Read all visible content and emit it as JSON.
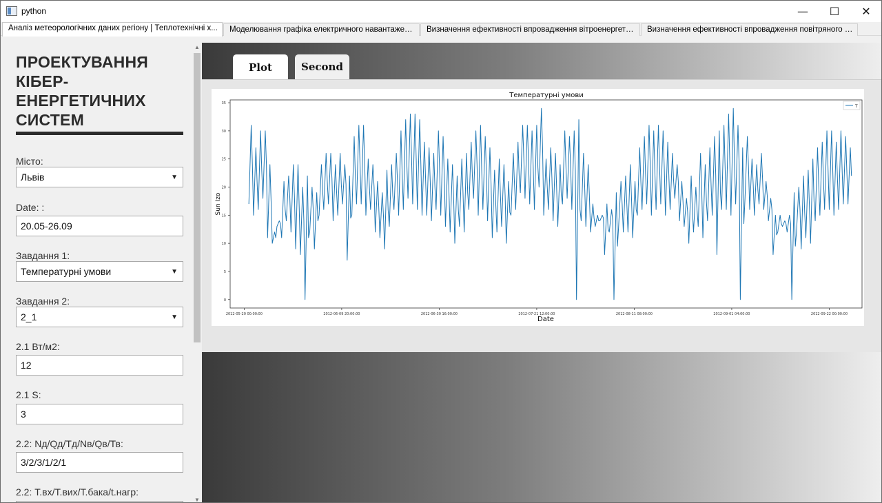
{
  "window": {
    "title": "python",
    "minimize_glyph": "—",
    "maximize_glyph": "☐",
    "close_glyph": "✕"
  },
  "doc_tabs": [
    {
      "label": "Аналіз метеорологічних даних регіону | Теплотехнічні х..."
    },
    {
      "label": "Моделювання графіка електричного навантаження"
    },
    {
      "label": "Визначення ефективності впровадження вітроенергети..."
    },
    {
      "label": "Визначення ефективності впровадження повітряного т..."
    }
  ],
  "sidebar": {
    "heading": "ПРОЕКТУВАННЯ КІБЕР-ЕНЕРГЕТИЧНИХ СИСТЕМ",
    "fields": [
      {
        "label": "Місто:",
        "value": "Львів",
        "kind": "select"
      },
      {
        "label": "Date: :",
        "value": "20.05-26.09",
        "kind": "input"
      },
      {
        "label": "Завдання 1:",
        "value": "Температурні умови",
        "kind": "select"
      },
      {
        "label": "Завдання 2:",
        "value": "2_1",
        "kind": "select"
      },
      {
        "label": "2.1 Вт/м2:",
        "value": "12",
        "kind": "input"
      },
      {
        "label": "2.1 S:",
        "value": "3",
        "kind": "input"
      },
      {
        "label": "2.2: Nд/Qд/Тд/Nв/Qв/Тв:",
        "value": "3/2/3/1/2/1",
        "kind": "input"
      },
      {
        "label": "2.2: Т.вх/Т.вих/Т.бака/t.нагр:",
        "value": "",
        "kind": "input"
      }
    ]
  },
  "plot_tabs": [
    {
      "label": "Plot",
      "active": true
    },
    {
      "label": "Second",
      "active": false
    }
  ],
  "chart_data": {
    "type": "line",
    "title": "Температурні умови",
    "xlabel": "Date",
    "ylabel": "Sun Izo",
    "legend": {
      "entries": [
        "T"
      ],
      "placement": "top-right"
    },
    "x_ticks": [
      "2012-05-20 00:00:00",
      "2012-06-09 20:00:00",
      "2012-06-30 16:00:00",
      "2012-07-21 12:00:00",
      "2012-08-11 08:00:00",
      "2012-09-01 04:00:00",
      "2012-09-22 00:00:00"
    ],
    "y_ticks": [
      "0",
      "5",
      "10",
      "15",
      "20",
      "25",
      "30",
      "35"
    ],
    "xlim": [
      "2012-05-17",
      "2012-09-29"
    ],
    "ylim": [
      -1.5,
      35.5
    ],
    "grid": false,
    "color": "#1f77b4",
    "series": [
      {
        "x": [
          "2012-05-21",
          "2012-05-22",
          "2012-05-23",
          "2012-05-24",
          "2012-05-25",
          "2012-05-26",
          "2012-05-27",
          "2012-05-28",
          "2012-05-29",
          "2012-05-30",
          "2012-05-31",
          "2012-06-01",
          "2012-06-02",
          "2012-06-03",
          "2012-06-04",
          "2012-06-05",
          "2012-06-06",
          "2012-06-07",
          "2012-06-08",
          "2012-06-09",
          "2012-06-10",
          "2012-06-11",
          "2012-06-12",
          "2012-06-13",
          "2012-06-14",
          "2012-06-15",
          "2012-06-16",
          "2012-06-17",
          "2012-06-18",
          "2012-06-19",
          "2012-06-20",
          "2012-06-21",
          "2012-06-22",
          "2012-06-23",
          "2012-06-24",
          "2012-06-25",
          "2012-06-26",
          "2012-06-27",
          "2012-06-28",
          "2012-06-29",
          "2012-06-30",
          "2012-07-01",
          "2012-07-02",
          "2012-07-03",
          "2012-07-04",
          "2012-07-05",
          "2012-07-06",
          "2012-07-07",
          "2012-07-08",
          "2012-07-09",
          "2012-07-10",
          "2012-07-11",
          "2012-07-12",
          "2012-07-13",
          "2012-07-14",
          "2012-07-15",
          "2012-07-16",
          "2012-07-17",
          "2012-07-18",
          "2012-07-19",
          "2012-07-20",
          "2012-07-21",
          "2012-07-22",
          "2012-07-23",
          "2012-07-24",
          "2012-07-25",
          "2012-07-26",
          "2012-07-27",
          "2012-07-28",
          "2012-07-29",
          "2012-07-30",
          "2012-07-31",
          "2012-08-01",
          "2012-08-02",
          "2012-08-03",
          "2012-08-04",
          "2012-08-05",
          "2012-08-06",
          "2012-08-07",
          "2012-08-08",
          "2012-08-09",
          "2012-08-10",
          "2012-08-11",
          "2012-08-12",
          "2012-08-13",
          "2012-08-14",
          "2012-08-15",
          "2012-08-16",
          "2012-08-17",
          "2012-08-18",
          "2012-08-19",
          "2012-08-20",
          "2012-08-21",
          "2012-08-22",
          "2012-08-23",
          "2012-08-24",
          "2012-08-25",
          "2012-08-26",
          "2012-08-27",
          "2012-08-28",
          "2012-08-29",
          "2012-08-30",
          "2012-08-31",
          "2012-09-01",
          "2012-09-02",
          "2012-09-03",
          "2012-09-04",
          "2012-09-05",
          "2012-09-06",
          "2012-09-07",
          "2012-09-08",
          "2012-09-09",
          "2012-09-10",
          "2012-09-11",
          "2012-09-12",
          "2012-09-13",
          "2012-09-14",
          "2012-09-15",
          "2012-09-16",
          "2012-09-17",
          "2012-09-18",
          "2012-09-19",
          "2012-09-20",
          "2012-09-21",
          "2012-09-22",
          "2012-09-23",
          "2012-09-24",
          "2012-09-25",
          "2012-09-26"
        ],
        "min": [
          17,
          15,
          16,
          18,
          11,
          10,
          13,
          11,
          14,
          12,
          9,
          8,
          0,
          12,
          9,
          15,
          16,
          17,
          14,
          15,
          17,
          7,
          15,
          17,
          17,
          15,
          16,
          12,
          11,
          9,
          13,
          16,
          15,
          16,
          18,
          17,
          16,
          15,
          15,
          14,
          16,
          15,
          13,
          12,
          10,
          13,
          12,
          16,
          18,
          15,
          16,
          14,
          11,
          12,
          13,
          10,
          15,
          16,
          19,
          18,
          17,
          16,
          20,
          15,
          16,
          14,
          13,
          17,
          18,
          16,
          0,
          14,
          13,
          12,
          13,
          14,
          8,
          12,
          0,
          13,
          12,
          12,
          11,
          15,
          16,
          17,
          15,
          16,
          17,
          15,
          16,
          18,
          14,
          13,
          10,
          12,
          13,
          11,
          14,
          15,
          8,
          16,
          16,
          15,
          17,
          0,
          18,
          16,
          15,
          17,
          16,
          14,
          8,
          12,
          13,
          12,
          0,
          12,
          9,
          11,
          10,
          14,
          15,
          16,
          16,
          15,
          16,
          17,
          17
        ],
        "max": [
          31,
          27,
          30,
          30,
          24,
          12,
          14,
          21,
          22,
          24,
          24,
          20,
          22,
          20,
          19,
          24,
          26,
          26,
          24,
          26,
          24,
          22,
          29,
          31,
          31,
          25,
          24,
          21,
          19,
          23,
          24,
          26,
          30,
          32,
          33,
          33,
          32,
          28,
          27,
          26,
          30,
          29,
          25,
          24,
          22,
          25,
          26,
          28,
          30,
          31,
          29,
          27,
          23,
          25,
          24,
          21,
          26,
          28,
          31,
          31,
          30,
          31,
          34,
          25,
          27,
          26,
          24,
          30,
          29,
          30,
          32,
          26,
          24,
          17,
          15,
          15,
          17,
          16,
          19,
          21,
          22,
          24,
          21,
          27,
          29,
          31,
          30,
          31,
          30,
          28,
          26,
          24,
          21,
          18,
          22,
          20,
          26,
          24,
          27,
          29,
          30,
          31,
          33,
          34,
          31,
          27,
          29,
          25,
          24,
          26,
          21,
          18,
          15,
          15,
          14,
          15,
          19,
          20,
          22,
          23,
          25,
          27,
          28,
          30,
          30,
          28,
          30,
          29,
          27
        ]
      }
    ]
  }
}
